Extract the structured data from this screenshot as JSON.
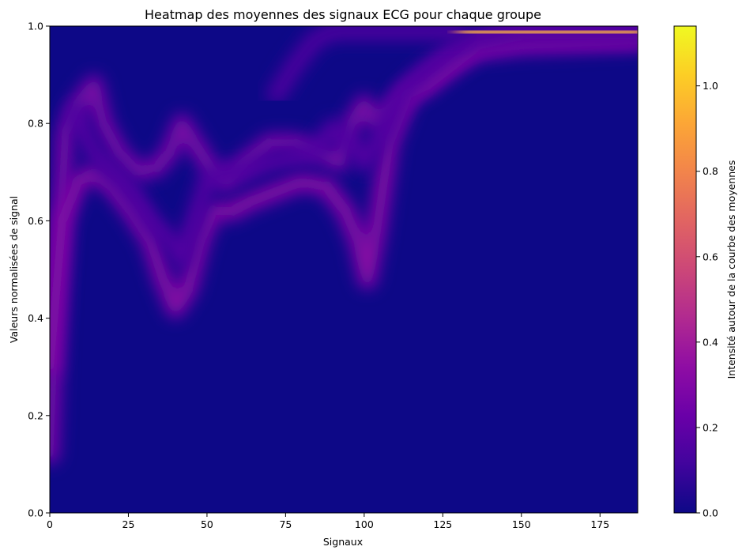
{
  "chart_data": {
    "type": "heatmap",
    "title": "Heatmap des moyennes des signaux ECG pour chaque groupe",
    "xlabel": "Signaux",
    "ylabel": "Valeurs normalisées de signal",
    "xlim": [
      0,
      187
    ],
    "ylim": [
      0,
      1.0
    ],
    "x_ticks": [
      "0",
      "25",
      "50",
      "75",
      "100",
      "125",
      "150",
      "175"
    ],
    "y_ticks": [
      "0.0",
      "0.2",
      "0.4",
      "0.6",
      "0.8",
      "1.0"
    ],
    "colorbar": {
      "label": "Intensité autour de la courbe des moyennes",
      "colormap": "plasma",
      "range": [
        0,
        1.14
      ],
      "ticks": [
        "0.0",
        "0.2",
        "0.4",
        "0.6",
        "0.8",
        "1.0"
      ]
    },
    "background_value": 0.0,
    "curves": [
      {
        "weight": 0.3,
        "points": [
          [
            0,
            0.12
          ],
          [
            2,
            0.45
          ],
          [
            5,
            0.78
          ],
          [
            9,
            0.84
          ],
          [
            14,
            0.88
          ],
          [
            17,
            0.8
          ],
          [
            22,
            0.74
          ],
          [
            28,
            0.7
          ],
          [
            34,
            0.71
          ],
          [
            38,
            0.74
          ],
          [
            42,
            0.8
          ],
          [
            46,
            0.76
          ],
          [
            52,
            0.7
          ],
          [
            56,
            0.68
          ],
          [
            62,
            0.72
          ],
          [
            70,
            0.76
          ],
          [
            78,
            0.76
          ],
          [
            86,
            0.74
          ],
          [
            92,
            0.72
          ],
          [
            96,
            0.8
          ],
          [
            100,
            0.84
          ],
          [
            104,
            0.8
          ],
          [
            110,
            0.84
          ],
          [
            118,
            0.88
          ],
          [
            126,
            0.92
          ],
          [
            135,
            0.95
          ],
          [
            150,
            0.96
          ],
          [
            187,
            0.97
          ]
        ]
      },
      {
        "weight": 0.34,
        "points": [
          [
            0,
            0.3
          ],
          [
            4,
            0.6
          ],
          [
            9,
            0.68
          ],
          [
            14,
            0.7
          ],
          [
            20,
            0.67
          ],
          [
            26,
            0.62
          ],
          [
            32,
            0.56
          ],
          [
            36,
            0.48
          ],
          [
            40,
            0.42
          ],
          [
            44,
            0.46
          ],
          [
            48,
            0.56
          ],
          [
            52,
            0.62
          ],
          [
            58,
            0.62
          ],
          [
            64,
            0.64
          ],
          [
            72,
            0.66
          ],
          [
            80,
            0.68
          ],
          [
            88,
            0.67
          ],
          [
            94,
            0.62
          ],
          [
            98,
            0.56
          ],
          [
            101,
            0.48
          ],
          [
            104,
            0.58
          ],
          [
            108,
            0.76
          ],
          [
            114,
            0.86
          ],
          [
            120,
            0.88
          ],
          [
            128,
            0.92
          ],
          [
            136,
            0.96
          ],
          [
            150,
            0.98
          ],
          [
            187,
            0.98
          ]
        ]
      },
      {
        "weight": 0.18,
        "points": [
          [
            8,
            0.82
          ],
          [
            14,
            0.74
          ],
          [
            20,
            0.7
          ],
          [
            26,
            0.66
          ],
          [
            32,
            0.6
          ],
          [
            38,
            0.56
          ],
          [
            42,
            0.52
          ],
          [
            46,
            0.6
          ],
          [
            50,
            0.68
          ],
          [
            56,
            0.7
          ],
          [
            62,
            0.7
          ],
          [
            70,
            0.72
          ],
          [
            78,
            0.73
          ],
          [
            84,
            0.74
          ],
          [
            90,
            0.79
          ],
          [
            96,
            0.76
          ],
          [
            100,
            0.72
          ],
          [
            106,
            0.78
          ],
          [
            112,
            0.86
          ],
          [
            118,
            0.9
          ],
          [
            126,
            0.94
          ],
          [
            134,
            0.97
          ],
          [
            150,
            0.99
          ],
          [
            187,
            0.99
          ]
        ]
      },
      {
        "weight": 0.16,
        "points": [
          [
            72,
            0.86
          ],
          [
            78,
            0.92
          ],
          [
            84,
            0.97
          ],
          [
            90,
            0.99
          ],
          [
            100,
            0.99
          ],
          [
            110,
            0.99
          ],
          [
            120,
            0.99
          ],
          [
            130,
            0.99
          ]
        ]
      },
      {
        "weight": 1.0,
        "points": [
          [
            132,
            0.99
          ],
          [
            140,
            0.985
          ],
          [
            150,
            0.985
          ],
          [
            160,
            0.985
          ],
          [
            170,
            0.985
          ],
          [
            180,
            0.985
          ],
          [
            187,
            0.985
          ]
        ]
      }
    ]
  }
}
